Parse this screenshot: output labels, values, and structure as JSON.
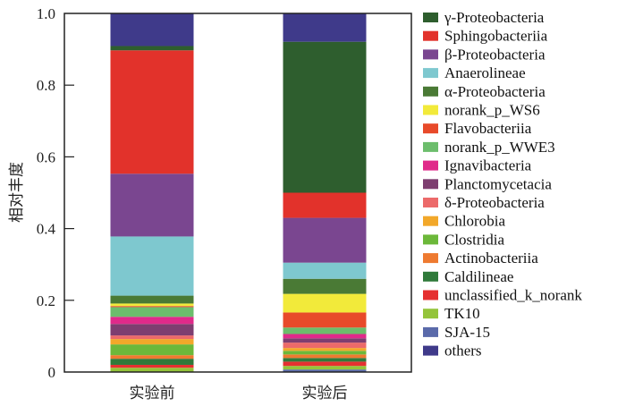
{
  "chart_data": {
    "type": "bar",
    "stacked": true,
    "title": "",
    "xlabel": "",
    "ylabel": "相对丰度",
    "ylim": [
      0,
      1.0
    ],
    "yticks": [
      "0",
      "0.2",
      "0.4",
      "0.6",
      "0.8",
      "1.0"
    ],
    "ytick_values": [
      0,
      0.2,
      0.4,
      0.6,
      0.8,
      1.0
    ],
    "grid": false,
    "legend_position": "right",
    "categories": [
      "实验前",
      "实验后"
    ],
    "series": [
      {
        "name": "γ-Proteobacteria",
        "color": "#2e5e2e",
        "values": [
          0.012,
          0.421
        ]
      },
      {
        "name": "Sphingobacteriia",
        "color": "#e2322b",
        "values": [
          0.344,
          0.07
        ]
      },
      {
        "name": "β-Proteobacteria",
        "color": "#7a4690",
        "values": [
          0.175,
          0.125
        ]
      },
      {
        "name": "Anaerolineae",
        "color": "#7ec8cf",
        "values": [
          0.165,
          0.045
        ]
      },
      {
        "name": "α-Proteobacteria",
        "color": "#4a7a35",
        "values": [
          0.022,
          0.042
        ]
      },
      {
        "name": "norank_p_WS6",
        "color": "#f2ea3a",
        "values": [
          0.007,
          0.052
        ]
      },
      {
        "name": "Flavobacteriia",
        "color": "#e84a2a",
        "values": [
          0.003,
          0.042
        ]
      },
      {
        "name": "norank_p_WWE3",
        "color": "#6cbd6c",
        "values": [
          0.027,
          0.018
        ]
      },
      {
        "name": "Ignavibacteria",
        "color": "#e02a8a",
        "values": [
          0.02,
          0.012
        ]
      },
      {
        "name": "Planctomycetacia",
        "color": "#7e3e70",
        "values": [
          0.032,
          0.012
        ]
      },
      {
        "name": "δ-Proteobacteria",
        "color": "#ec6a6a",
        "values": [
          0.01,
          0.015
        ]
      },
      {
        "name": "Chlorobia",
        "color": "#f2a82a",
        "values": [
          0.015,
          0.008
        ]
      },
      {
        "name": "Clostridia",
        "color": "#6cb83a",
        "values": [
          0.03,
          0.01
        ]
      },
      {
        "name": "Actinobacteriia",
        "color": "#ee7a30",
        "values": [
          0.01,
          0.01
        ]
      },
      {
        "name": "Caldilineae",
        "color": "#2f7a3a",
        "values": [
          0.017,
          0.01
        ]
      },
      {
        "name": "unclassified_k_norank",
        "color": "#e53030",
        "values": [
          0.008,
          0.012
        ]
      },
      {
        "name": "TK10",
        "color": "#94c43a",
        "values": [
          0.012,
          0.01
        ]
      },
      {
        "name": "SJA-15",
        "color": "#5a6aaa",
        "values": [
          0.0,
          0.007
        ]
      },
      {
        "name": "others",
        "color": "#3f3a8a",
        "values": [
          0.09,
          0.078
        ]
      }
    ]
  }
}
